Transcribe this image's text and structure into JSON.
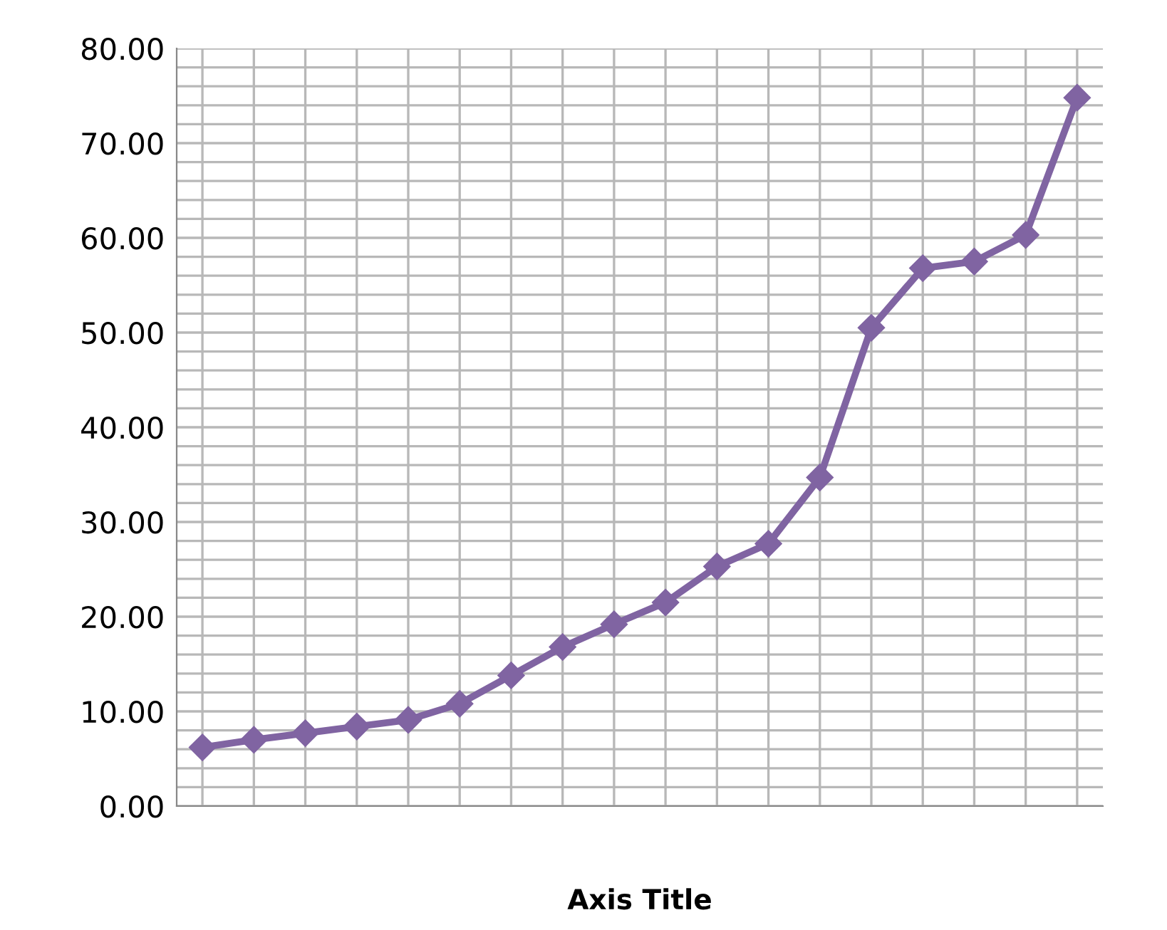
{
  "chart_data": {
    "type": "line",
    "xlabel": "Axis Title",
    "categories": [
      null,
      null,
      null,
      null,
      null,
      null,
      null,
      null,
      null,
      null,
      null,
      null,
      null,
      null,
      null,
      null,
      null,
      null
    ],
    "series": [
      {
        "color": "#8064a2",
        "values": [
          6.2,
          7.0,
          7.7,
          8.4,
          9.1,
          10.8,
          13.8,
          16.8,
          19.2,
          21.5,
          25.3,
          27.7,
          34.7,
          50.5,
          56.8,
          57.5,
          60.3,
          74.8
        ]
      }
    ],
    "ylim": [
      0,
      80
    ],
    "yticks": [
      {
        "value": 0,
        "label": "0.00"
      },
      {
        "value": 2,
        "label": null
      },
      {
        "value": 4,
        "label": null
      },
      {
        "value": 6,
        "label": null
      },
      {
        "value": 8,
        "label": null
      },
      {
        "value": 10,
        "label": "10.00"
      },
      {
        "value": 12,
        "label": null
      },
      {
        "value": 14,
        "label": null
      },
      {
        "value": 16,
        "label": null
      },
      {
        "value": 18,
        "label": null
      },
      {
        "value": 20,
        "label": "20.00"
      },
      {
        "value": 22,
        "label": null
      },
      {
        "value": 24,
        "label": null
      },
      {
        "value": 26,
        "label": null
      },
      {
        "value": 28,
        "label": null
      },
      {
        "value": 30,
        "label": "30.00"
      },
      {
        "value": 32,
        "label": null
      },
      {
        "value": 34,
        "label": null
      },
      {
        "value": 36,
        "label": null
      },
      {
        "value": 38,
        "label": null
      },
      {
        "value": 40,
        "label": "40.00"
      },
      {
        "value": 42,
        "label": null
      },
      {
        "value": 44,
        "label": null
      },
      {
        "value": 46,
        "label": null
      },
      {
        "value": 48,
        "label": null
      },
      {
        "value": 50,
        "label": "50.00"
      },
      {
        "value": 52,
        "label": null
      },
      {
        "value": 54,
        "label": null
      },
      {
        "value": 56,
        "label": null
      },
      {
        "value": 58,
        "label": null
      },
      {
        "value": 60,
        "label": "60.00"
      },
      {
        "value": 62,
        "label": null
      },
      {
        "value": 64,
        "label": null
      },
      {
        "value": 66,
        "label": null
      },
      {
        "value": 68,
        "label": null
      },
      {
        "value": 70,
        "label": "70.00"
      },
      {
        "value": 72,
        "label": null
      },
      {
        "value": 74,
        "label": null
      },
      {
        "value": 76,
        "label": null
      },
      {
        "value": 78,
        "label": null
      },
      {
        "value": 80,
        "label": "80.00"
      }
    ],
    "grid": true,
    "marker": "diamond",
    "line_style": "solid",
    "legend": false
  }
}
